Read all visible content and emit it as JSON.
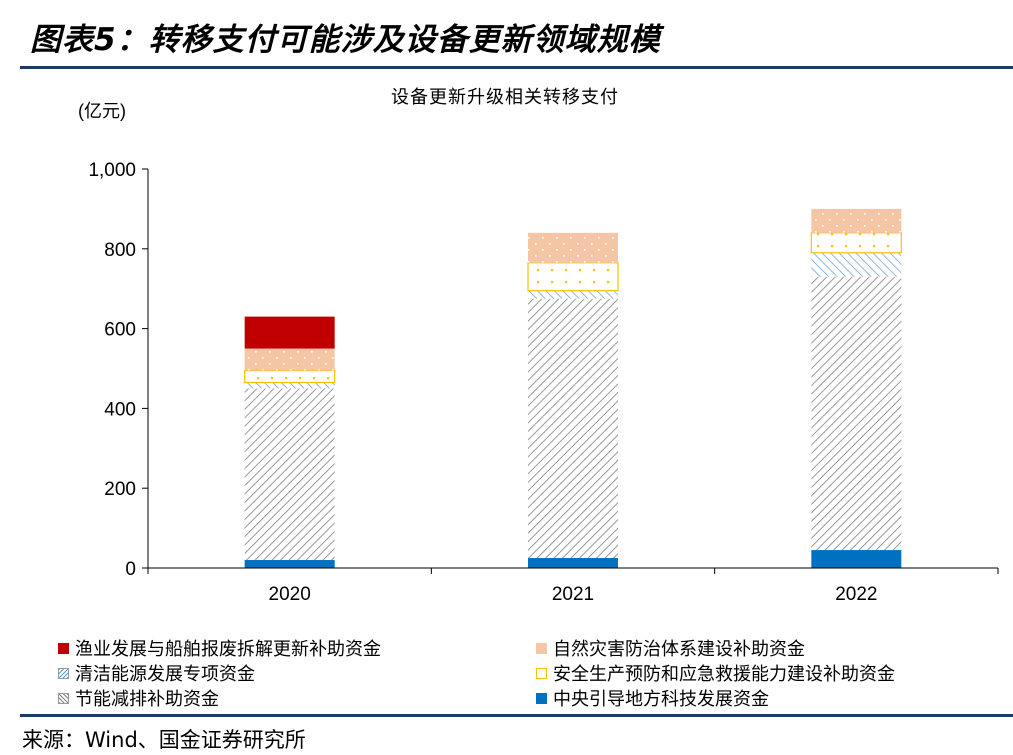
{
  "figure": {
    "title": "图表5：转移支付可能涉及设备更新领域规模",
    "source": "来源：Wind、国金证券研究所"
  },
  "chart_data": {
    "type": "bar",
    "stacked": true,
    "title": "设备更新升级相关转移支付",
    "ylabel": "(亿元)",
    "xlabel": "",
    "categories": [
      "2020",
      "2021",
      "2022"
    ],
    "ylim": [
      0,
      1000
    ],
    "yticks": [
      0,
      200,
      400,
      600,
      800,
      1000
    ],
    "ytick_labels": [
      "0",
      "200",
      "400",
      "600",
      "800",
      "1,000"
    ],
    "grid": false,
    "legend_position": "bottom",
    "series": [
      {
        "name": "中央引导地方科技发展资金",
        "values": [
          20,
          25,
          45
        ],
        "color": "#0070c0",
        "pattern": "solid"
      },
      {
        "name": "节能减排补助资金",
        "values": [
          430,
          650,
          685
        ],
        "color": "#7f7f7f",
        "pattern": "diagonal-hatch"
      },
      {
        "name": "清洁能源发展专项资金",
        "values": [
          15,
          20,
          60
        ],
        "color": "#4a86c5",
        "pattern": "blue-hatch"
      },
      {
        "name": "安全生产预防和应急救援能力建设补助资金",
        "values": [
          30,
          70,
          50
        ],
        "color": "#ffc000",
        "pattern": "dotted-outline"
      },
      {
        "name": "自然灾害防治体系建设补助资金",
        "values": [
          55,
          75,
          60
        ],
        "color": "#f4c7a6",
        "pattern": "dotted-fill"
      },
      {
        "name": "渔业发展与船舶报废拆解更新补助资金",
        "values": [
          80,
          0,
          0
        ],
        "color": "#c00000",
        "pattern": "solid"
      }
    ],
    "legend_order": [
      "渔业发展与船舶报废拆解更新补助资金",
      "自然灾害防治体系建设补助资金",
      "清洁能源发展专项资金",
      "安全生产预防和应急救援能力建设补助资金",
      "节能减排补助资金",
      "中央引导地方科技发展资金"
    ]
  }
}
